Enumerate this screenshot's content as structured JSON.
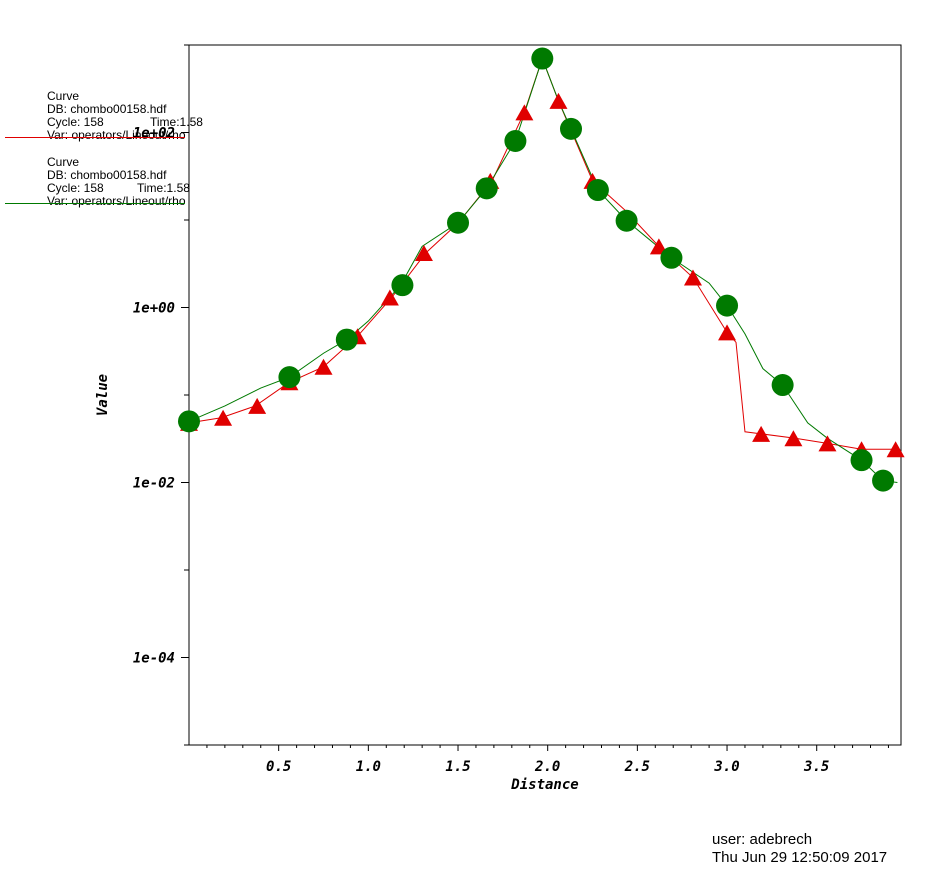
{
  "legend": [
    {
      "title": "Curve",
      "db": "DB: chombo00158.hdf",
      "cycle": "Cycle: 158",
      "time": "Time:1.58",
      "var": "Var: operators/Lineout/rho",
      "color": "#e00000"
    },
    {
      "title": "Curve",
      "db": "DB: chombo00158.hdf",
      "cycle": "Cycle: 158",
      "time": "Time:1.58",
      "var": "Var: operators/Lineout/rho",
      "color": "#007a00"
    }
  ],
  "user": {
    "name": "user: adebrech",
    "date": "Thu Jun 29 12:50:09 2017"
  },
  "chart_data": {
    "type": "line",
    "xlabel": "Distance",
    "ylabel": "Value",
    "yscale": "log",
    "xlim": [
      0.0,
      3.97
    ],
    "ylim": [
      1e-05,
      1000
    ],
    "x_ticks": [
      "0.5",
      "1.0",
      "1.5",
      "2.0",
      "2.5",
      "3.0",
      "3.5"
    ],
    "x_tick_values": [
      0.5,
      1.0,
      1.5,
      2.0,
      2.5,
      3.0,
      3.5
    ],
    "y_ticks": [
      "1e-04",
      "1e-02",
      "1e+00",
      "1e+02"
    ],
    "y_tick_values": [
      0.0001,
      0.01,
      1,
      100
    ],
    "series": [
      {
        "color": "#e00000",
        "marker": "triangle",
        "x": [
          0.0,
          0.18,
          0.37,
          0.56,
          0.75,
          0.94,
          1.13,
          1.32,
          1.5,
          1.69,
          1.87,
          1.97,
          2.06,
          2.25,
          2.43,
          2.62,
          2.81,
          3.0,
          3.05,
          3.1,
          3.19,
          3.38,
          3.56,
          3.75,
          3.94
        ],
        "y": [
          0.048,
          0.055,
          0.075,
          0.14,
          0.21,
          0.47,
          1.3,
          4.2,
          9.2,
          28,
          170,
          700,
          230,
          28,
          13,
          5,
          2.2,
          0.52,
          0.4,
          0.038,
          0.036,
          0.032,
          0.028,
          0.024,
          0.024
        ],
        "marker_x": [
          0.0,
          0.19,
          0.38,
          0.56,
          0.75,
          0.94,
          1.12,
          1.31,
          1.68,
          1.87,
          2.06,
          2.25,
          2.62,
          2.81,
          3.0,
          3.19,
          3.37,
          3.56,
          3.75,
          3.94
        ],
        "marker_y": [
          0.048,
          0.055,
          0.075,
          0.14,
          0.21,
          0.47,
          1.3,
          4.2,
          28,
          170,
          230,
          28,
          5,
          2.2,
          0.52,
          0.036,
          0.032,
          0.028,
          0.024,
          0.024
        ]
      },
      {
        "color": "#007a00",
        "marker": "circle",
        "x": [
          0.0,
          0.2,
          0.4,
          0.56,
          0.75,
          0.88,
          1.0,
          1.18,
          1.3,
          1.5,
          1.66,
          1.82,
          1.97,
          2.06,
          2.13,
          2.28,
          2.44,
          2.69,
          2.9,
          3.0,
          3.1,
          3.2,
          3.31,
          3.45,
          3.56,
          3.75,
          3.87,
          3.95
        ],
        "y": [
          0.05,
          0.075,
          0.12,
          0.16,
          0.3,
          0.43,
          0.7,
          1.8,
          5,
          9.3,
          23,
          80,
          700,
          230,
          110,
          22,
          9.8,
          3.7,
          1.9,
          1.05,
          0.5,
          0.2,
          0.13,
          0.048,
          0.032,
          0.018,
          0.0105,
          0.01
        ],
        "marker_x": [
          0.0,
          0.56,
          0.88,
          1.19,
          1.5,
          1.66,
          1.82,
          1.97,
          2.13,
          2.28,
          2.44,
          2.69,
          3.0,
          3.31,
          3.75,
          3.87
        ],
        "marker_y": [
          0.05,
          0.16,
          0.43,
          1.8,
          9.3,
          23,
          80,
          700,
          110,
          22,
          9.8,
          3.7,
          1.05,
          0.13,
          0.018,
          0.0105
        ]
      }
    ]
  }
}
